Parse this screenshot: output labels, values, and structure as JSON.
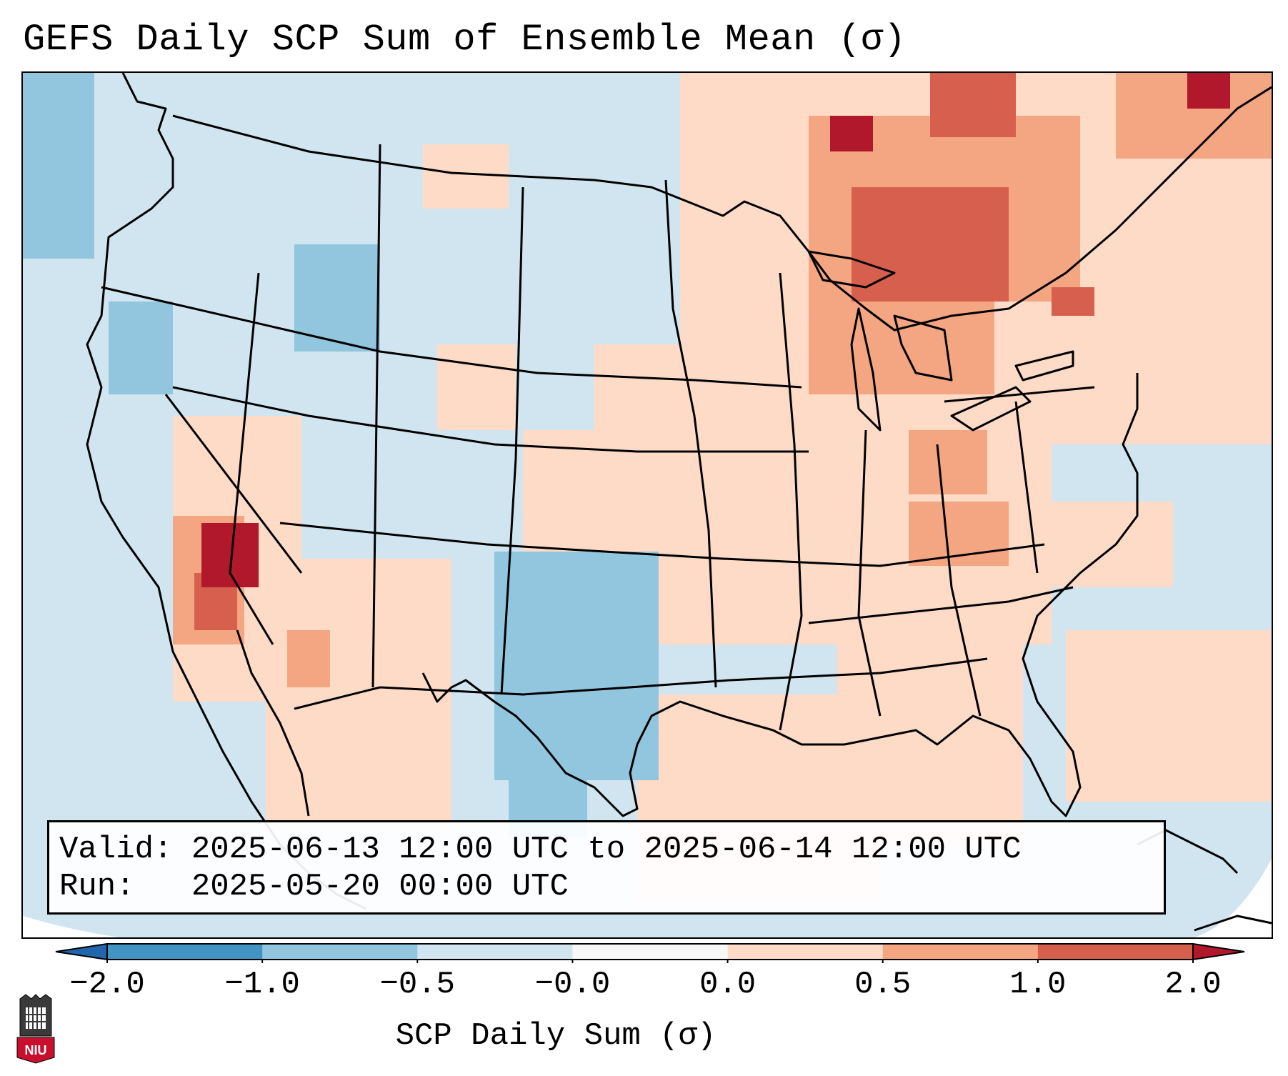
{
  "title": "GEFS Daily SCP Sum of Ensemble Mean (σ)",
  "info": {
    "valid_label": "Valid:",
    "valid_value": "2025-06-13 12:00 UTC to 2025-06-14 12:00 UTC",
    "run_label": "Run:",
    "run_value": "2025-05-20 00:00 UTC"
  },
  "colorbar": {
    "title": "SCP Daily Sum (σ)",
    "ticks": [
      "−2.0",
      "−1.0",
      "−0.5",
      "−0.0",
      "0.0",
      "0.5",
      "1.0",
      "2.0"
    ],
    "colors": [
      "#2166ac",
      "#4393c3",
      "#92c5de",
      "#d1e5f0",
      "#f7f7f7",
      "#fddbc7",
      "#f4a582",
      "#d6604d",
      "#b2182b"
    ]
  },
  "logo": {
    "text": "NIU",
    "icon": "niu-seal-icon"
  }
}
